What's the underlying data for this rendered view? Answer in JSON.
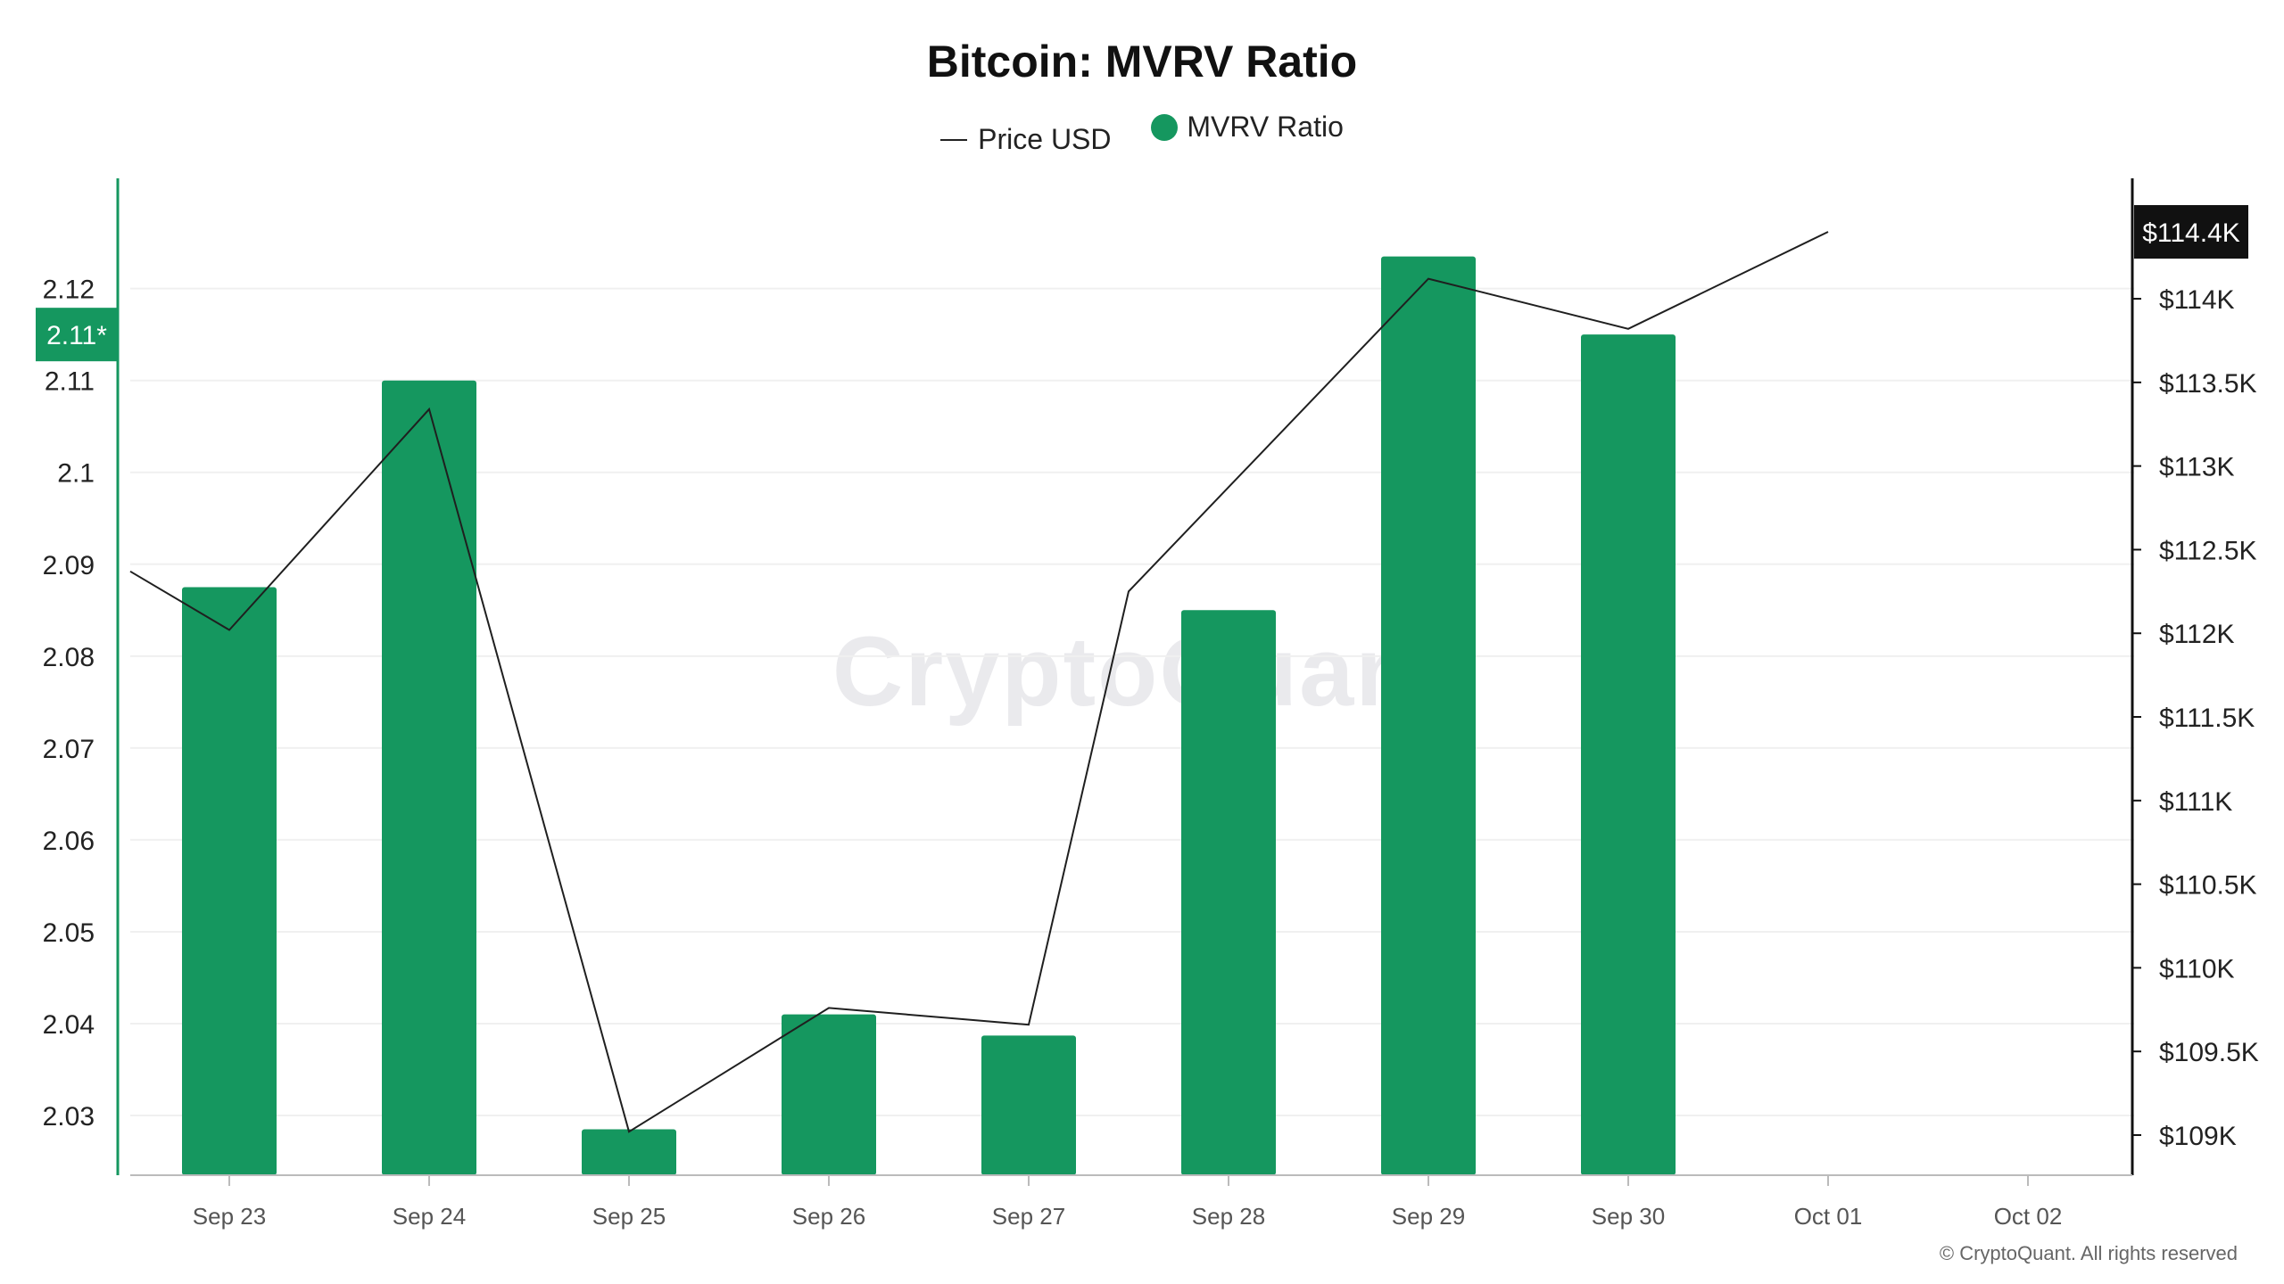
{
  "colors": {
    "bar": "#15975f",
    "price_line": "#1f1f1f",
    "grid": "#f0f0f0",
    "left_axis": "#15975f",
    "right_axis": "#111111",
    "price_badge_bg": "#111111",
    "mvrv_badge_bg": "#15975f"
  },
  "branding": {
    "watermark": "CryptoQuant",
    "copyright": "© CryptoQuant. All rights reserved"
  },
  "chart_data": {
    "type": "bar",
    "title": "Bitcoin: MVRV Ratio",
    "categories": [
      "Sep 23",
      "Sep 24",
      "Sep 25",
      "Sep 26",
      "Sep 27",
      "Sep 28",
      "Sep 29",
      "Sep 30",
      "Oct 01",
      "Oct 02"
    ],
    "series": [
      {
        "name": "MVRV Ratio",
        "type": "bar",
        "axis": "left",
        "values": [
          2.0875,
          2.11,
          2.0285,
          2.041,
          2.0387,
          2.085,
          2.1235,
          2.115,
          null,
          null
        ]
      },
      {
        "name": "Price USD",
        "type": "line",
        "axis": "right",
        "start_value": 112370,
        "values": [
          112020,
          113340,
          109020,
          109760,
          109660,
          null,
          114120,
          113820,
          114400,
          null
        ],
        "between_values": [
          {
            "after": "Sep 27",
            "before": "Sep 28",
            "value": 112250
          }
        ]
      }
    ],
    "y_left": {
      "ylim": [
        2.0235,
        2.132
      ],
      "ticks": [
        "2.03",
        "2.04",
        "2.05",
        "2.06",
        "2.07",
        "2.08",
        "2.09",
        "2.1",
        "2.11",
        "2.12"
      ],
      "tick_values": [
        2.03,
        2.04,
        2.05,
        2.06,
        2.07,
        2.08,
        2.09,
        2.1,
        2.11,
        2.12
      ],
      "current_label": "2.11*",
      "current_value": 2.115
    },
    "y_right": {
      "ylim": [
        108760,
        114720
      ],
      "ticks": [
        "$109K",
        "$109.5K",
        "$110K",
        "$110.5K",
        "$111K",
        "$111.5K",
        "$112K",
        "$112.5K",
        "$113K",
        "$113.5K",
        "$114K"
      ],
      "tick_values": [
        109000,
        109500,
        110000,
        110500,
        111000,
        111500,
        112000,
        112500,
        113000,
        113500,
        114000
      ],
      "current_label": "$114.4K",
      "current_value": 114400
    },
    "legend": [
      "Price USD",
      "MVRV Ratio"
    ],
    "legend_placement": "top-center",
    "grid": "horizontal"
  }
}
